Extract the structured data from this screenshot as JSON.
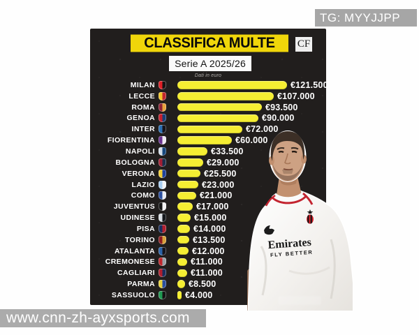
{
  "badge": {
    "text": "TG: MYYJJPP"
  },
  "site_watermark": {
    "text": "www.cnn-zh-ayxsports.com"
  },
  "header": {
    "title": "CLASSIFICA MULTE",
    "logo": "CF",
    "subtitle": "Serie A 2025/26",
    "note": "Dati in euro"
  },
  "chart_data": {
    "type": "bar",
    "orientation": "horizontal",
    "title": "CLASSIFICA MULTE",
    "subtitle": "Serie A 2025/26",
    "note": "Dati in euro",
    "currency": "EUR",
    "xlim": [
      0,
      121500
    ],
    "bar_color": "#f5ee33",
    "legend": false,
    "categories": [
      "MILAN",
      "LECCE",
      "ROMA",
      "GENOA",
      "INTER",
      "FIORENTINA",
      "NAPOLI",
      "BOLOGNA",
      "VERONA",
      "LAZIO",
      "COMO",
      "JUVENTUS",
      "UDINESE",
      "PISA",
      "TORINO",
      "ATALANTA",
      "CREMONESE",
      "CAGLIARI",
      "PARMA",
      "SASSUOLO"
    ],
    "values": [
      121500,
      107000,
      93500,
      90000,
      72000,
      60000,
      33500,
      29000,
      25500,
      23000,
      21000,
      17000,
      15000,
      14000,
      13500,
      12000,
      11000,
      11000,
      8500,
      4000
    ],
    "value_labels": [
      "€121.500",
      "€107.000",
      "€93.500",
      "€90.000",
      "€72.000",
      "€60.000",
      "€33.500",
      "€29.000",
      "€25.500",
      "€23.000",
      "€21.000",
      "€17.000",
      "€15.000",
      "€14.000",
      "€13.500",
      "€12.000",
      "€11.000",
      "€11.000",
      "€8.500",
      "€4.000"
    ],
    "crest_colors": [
      [
        "#e01f26",
        "#191314"
      ],
      [
        "#f4c62a",
        "#c0272d"
      ],
      [
        "#8e2336",
        "#e8a33d"
      ],
      [
        "#c8202e",
        "#1a3f77"
      ],
      [
        "#2b6fb3",
        "#17151c"
      ],
      [
        "#6a3190",
        "#efeaf2"
      ],
      [
        "#d4dde8",
        "#16467c"
      ],
      [
        "#a31e34",
        "#1c2f4c"
      ],
      [
        "#f2cf35",
        "#20439c"
      ],
      [
        "#a8cdf0",
        "#f2f4f6"
      ],
      [
        "#2b4f9e",
        "#e8ecf2"
      ],
      [
        "#141414",
        "#f2f2f2"
      ],
      [
        "#d8dde2",
        "#15181c"
      ],
      [
        "#1b2f5e",
        "#b01f2e"
      ],
      [
        "#8c1c20",
        "#d8a13a"
      ],
      [
        "#2b63a8",
        "#17151c"
      ],
      [
        "#c0252c",
        "#9aa0a6"
      ],
      [
        "#b01f2e",
        "#1b2f5e"
      ],
      [
        "#e8d23a",
        "#2b4f9e"
      ],
      [
        "#1f9a52",
        "#141414"
      ]
    ]
  },
  "player": {
    "sponsor": "Emirates",
    "sponsor_tagline": "FLY BETTER"
  },
  "colors": {
    "card_bg": "#211e1d",
    "title_yellow": "#f0d60a",
    "bar_yellow": "#f5ee33",
    "badge_gray": "#a6a6a6",
    "watermark_gray": "#ababab"
  }
}
